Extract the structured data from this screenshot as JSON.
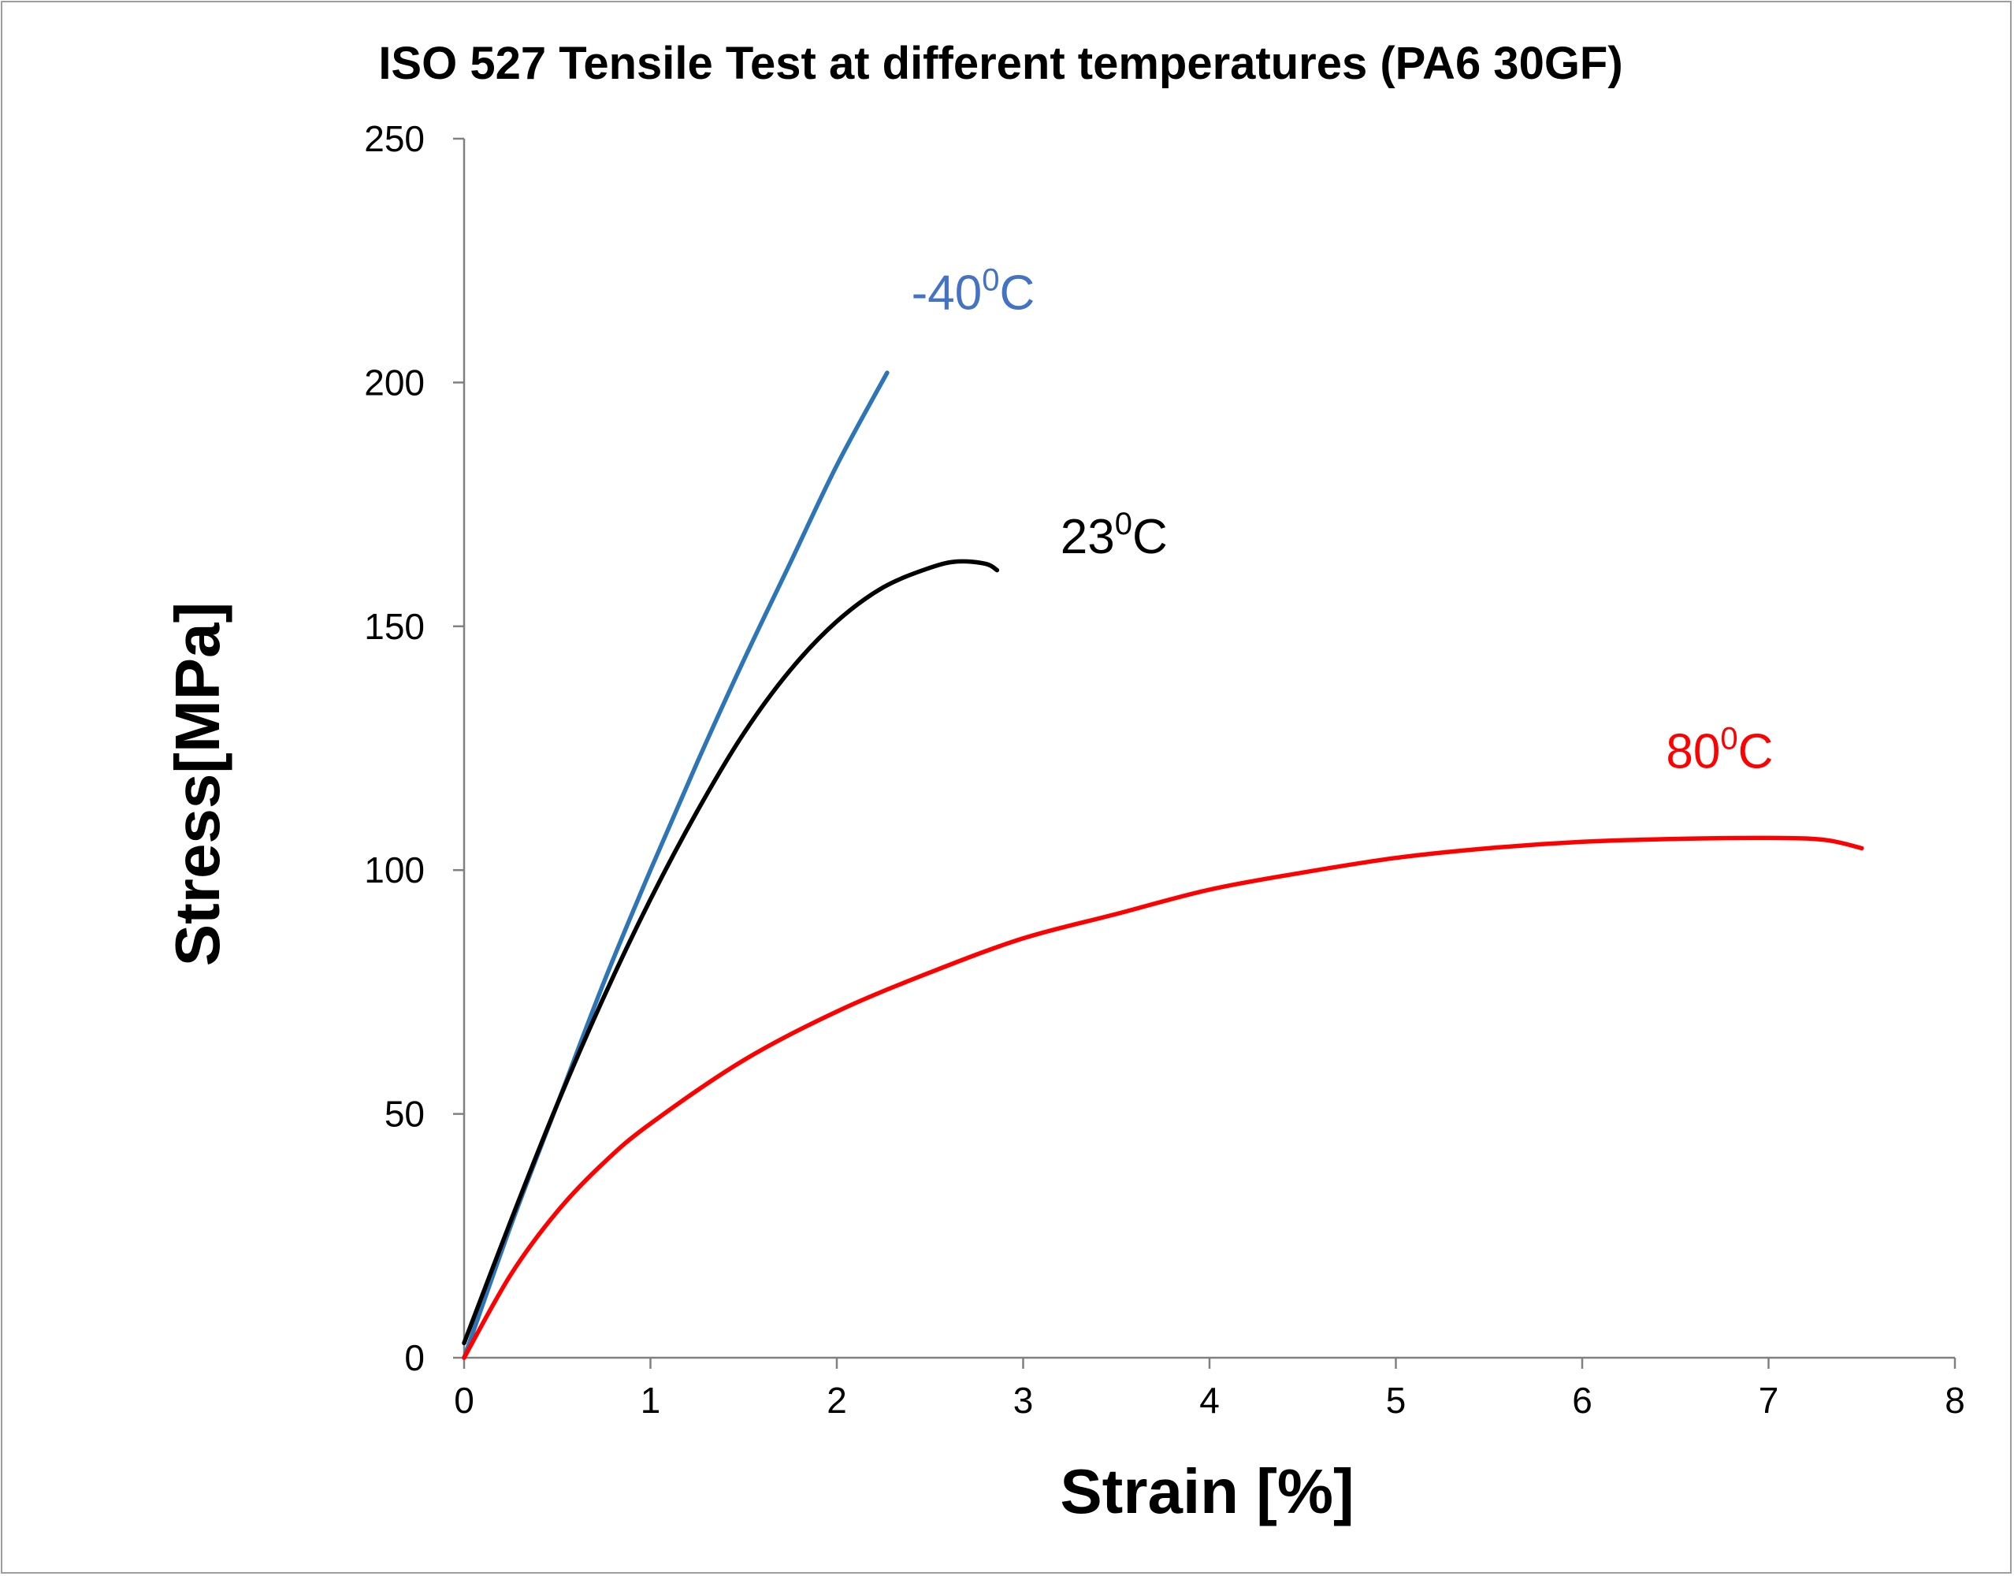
{
  "chart_data": {
    "type": "line",
    "title": "ISO 527 Tensile Test at different temperatures (PA6 30GF)",
    "xlabel": "Strain [%]",
    "ylabel": "Stress[MPa]",
    "xlim": [
      0,
      8
    ],
    "ylim": [
      0,
      250
    ],
    "xticks": [
      "0",
      "1",
      "2",
      "3",
      "4",
      "5",
      "6",
      "7",
      "8"
    ],
    "yticks": [
      "0",
      "50",
      "100",
      "150",
      "200",
      "250"
    ],
    "grid": false,
    "legend": "inline labels",
    "series": [
      {
        "label_main": "-40",
        "label_sup": "0",
        "label_end": "C",
        "color": "#2e75b6",
        "label_color": "#4472c4",
        "label_at": [
          2.4,
          215
        ],
        "points": [
          [
            0,
            0
          ],
          [
            0.25,
            27
          ],
          [
            0.5,
            52
          ],
          [
            0.75,
            77
          ],
          [
            1.0,
            100
          ],
          [
            1.25,
            122
          ],
          [
            1.5,
            143
          ],
          [
            1.75,
            163
          ],
          [
            2.0,
            183
          ],
          [
            2.27,
            202
          ]
        ]
      },
      {
        "label_main": "23",
        "label_sup": "0",
        "label_end": "C",
        "color": "#000000",
        "label_color": "#000000",
        "label_at": [
          3.2,
          165
        ],
        "points": [
          [
            0,
            3
          ],
          [
            0.25,
            28
          ],
          [
            0.5,
            52
          ],
          [
            0.75,
            74
          ],
          [
            1.0,
            94
          ],
          [
            1.25,
            112
          ],
          [
            1.5,
            128
          ],
          [
            1.75,
            141
          ],
          [
            2.0,
            151
          ],
          [
            2.25,
            158
          ],
          [
            2.5,
            162
          ],
          [
            2.65,
            163.3
          ],
          [
            2.8,
            162.8
          ],
          [
            2.86,
            161.5
          ]
        ]
      },
      {
        "label_main": "80",
        "label_sup": "0",
        "label_end": "C",
        "color": "#ff0000",
        "label_color": "#ff0000",
        "label_at": [
          6.45,
          121
        ],
        "points": [
          [
            0,
            0
          ],
          [
            0.25,
            17
          ],
          [
            0.5,
            30
          ],
          [
            0.75,
            40
          ],
          [
            1.0,
            48
          ],
          [
            1.5,
            61
          ],
          [
            2.0,
            71
          ],
          [
            2.5,
            79
          ],
          [
            3.0,
            86
          ],
          [
            3.5,
            91
          ],
          [
            4.0,
            96
          ],
          [
            4.5,
            99.5
          ],
          [
            5.0,
            102.5
          ],
          [
            5.5,
            104.5
          ],
          [
            6.0,
            105.8
          ],
          [
            6.5,
            106.4
          ],
          [
            7.0,
            106.6
          ],
          [
            7.3,
            106.2
          ],
          [
            7.5,
            104.5
          ]
        ]
      }
    ]
  }
}
